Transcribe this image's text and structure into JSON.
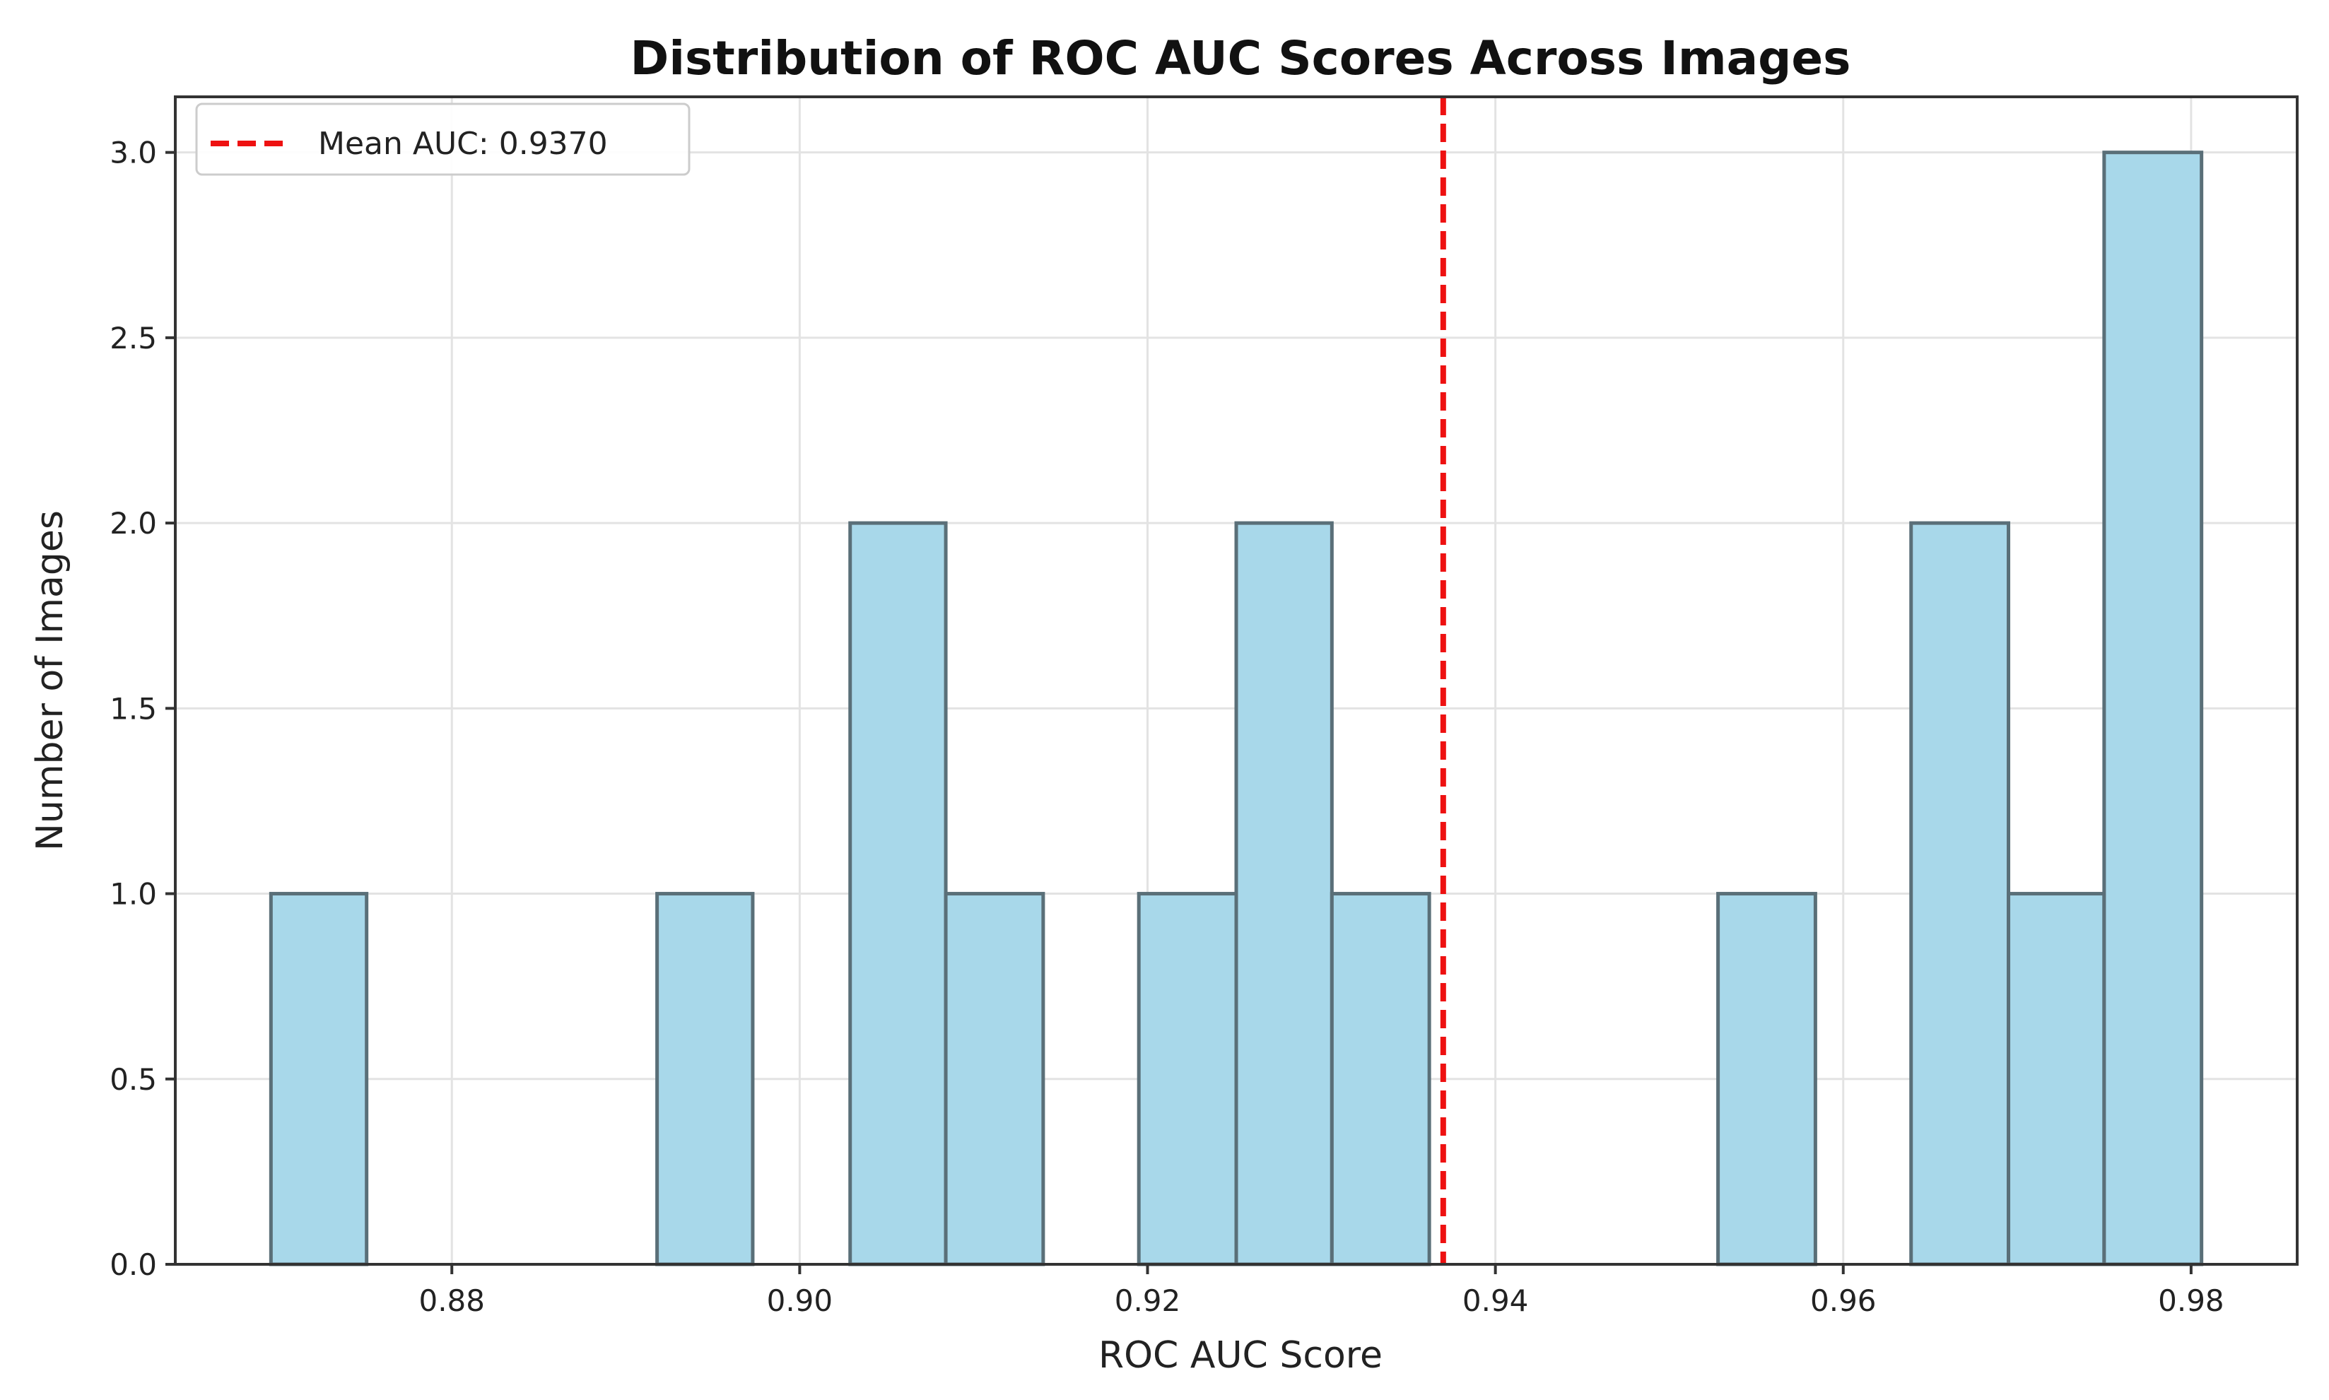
{
  "chart_data": {
    "type": "bar",
    "title": "Distribution of ROC AUC Scores Across Images",
    "xlabel": "ROC AUC Score",
    "ylabel": "Number of Images",
    "xlim": [
      0.8641,
      0.9861
    ],
    "ylim": [
      0,
      3.15
    ],
    "xticks": [
      {
        "value": 0.88,
        "label": "0.88"
      },
      {
        "value": 0.9,
        "label": "0.90"
      },
      {
        "value": 0.92,
        "label": "0.92"
      },
      {
        "value": 0.94,
        "label": "0.94"
      },
      {
        "value": 0.96,
        "label": "0.96"
      },
      {
        "value": 0.98,
        "label": "0.98"
      }
    ],
    "yticks": [
      {
        "value": 0.0,
        "label": "0.0"
      },
      {
        "value": 0.5,
        "label": "0.5"
      },
      {
        "value": 1.0,
        "label": "1.0"
      },
      {
        "value": 1.5,
        "label": "1.5"
      },
      {
        "value": 2.0,
        "label": "2.0"
      },
      {
        "value": 2.5,
        "label": "2.5"
      },
      {
        "value": 3.0,
        "label": "3.0"
      }
    ],
    "grid": true,
    "bins": [
      {
        "start": 0.8696,
        "end": 0.8751,
        "count": 1
      },
      {
        "start": 0.8751,
        "end": 0.8807,
        "count": 0
      },
      {
        "start": 0.8807,
        "end": 0.8862,
        "count": 0
      },
      {
        "start": 0.8862,
        "end": 0.8918,
        "count": 0
      },
      {
        "start": 0.8918,
        "end": 0.8973,
        "count": 1
      },
      {
        "start": 0.8973,
        "end": 0.9029,
        "count": 0
      },
      {
        "start": 0.9029,
        "end": 0.9084,
        "count": 2
      },
      {
        "start": 0.9084,
        "end": 0.914,
        "count": 1
      },
      {
        "start": 0.914,
        "end": 0.9195,
        "count": 0
      },
      {
        "start": 0.9195,
        "end": 0.9251,
        "count": 1
      },
      {
        "start": 0.9251,
        "end": 0.9306,
        "count": 2
      },
      {
        "start": 0.9306,
        "end": 0.9362,
        "count": 1
      },
      {
        "start": 0.9362,
        "end": 0.9417,
        "count": 0
      },
      {
        "start": 0.9417,
        "end": 0.9473,
        "count": 0
      },
      {
        "start": 0.9473,
        "end": 0.9528,
        "count": 0
      },
      {
        "start": 0.9528,
        "end": 0.9584,
        "count": 1
      },
      {
        "start": 0.9584,
        "end": 0.9639,
        "count": 0
      },
      {
        "start": 0.9639,
        "end": 0.9695,
        "count": 2
      },
      {
        "start": 0.9695,
        "end": 0.975,
        "count": 1
      },
      {
        "start": 0.975,
        "end": 0.9806,
        "count": 3
      }
    ],
    "bar_color": "#a8d8ea",
    "bar_edge_color": "#5a6f78",
    "mean_line": {
      "value": 0.937,
      "label": "Mean AUC: 0.9370",
      "color": "#ee1111",
      "style": "dashed"
    },
    "legend": {
      "position": "top-left",
      "entries": [
        "Mean AUC: 0.9370"
      ]
    }
  }
}
